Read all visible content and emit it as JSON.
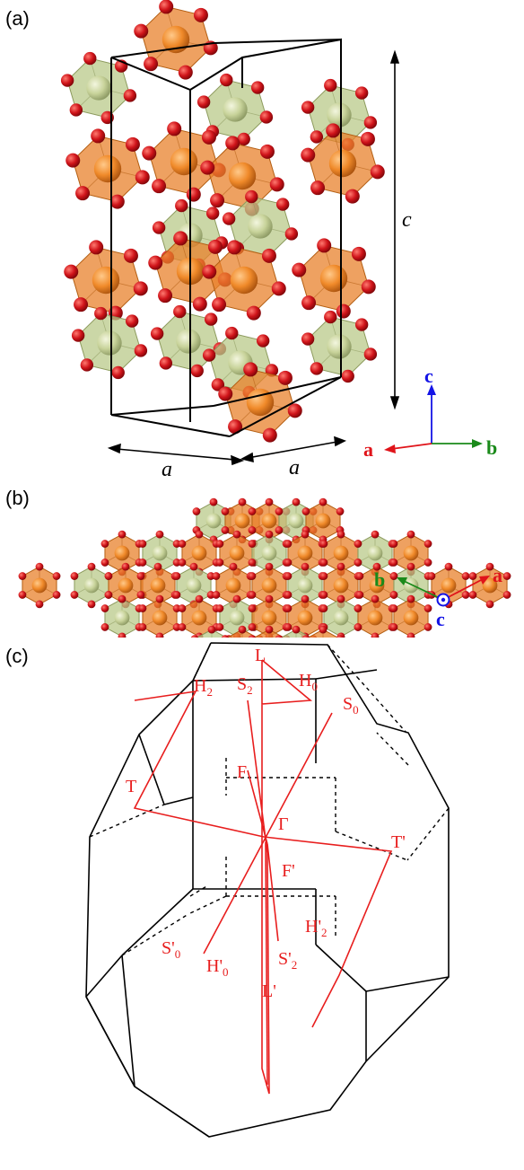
{
  "panels": {
    "a": {
      "label": "(a)",
      "lattice_c": "c",
      "lattice_a_left": "a",
      "lattice_a_right": "a",
      "axes": {
        "c": "c",
        "a": "a",
        "b": "b"
      }
    },
    "b": {
      "label": "(b)",
      "axes": {
        "b": "b",
        "a": "a",
        "c": "c"
      }
    },
    "c": {
      "label": "(c)",
      "points": {
        "L": "L",
        "S2": "S",
        "S2_sub": "2",
        "H2": "H",
        "H2_sub": "2",
        "H0": "H",
        "H0_sub": "0",
        "S0": "S",
        "S0_sub": "0",
        "F": "F",
        "T": "T",
        "Gamma": "Γ",
        "Tp": "T'",
        "Fp": "F'",
        "H2p": "H'",
        "H2p_sub": "2",
        "S0p": "S'",
        "S0p_sub": "0",
        "H0p": "H'",
        "H0p_sub": "0",
        "S2p": "S'",
        "S2p_sub": "2",
        "Lp": "L'"
      }
    }
  },
  "colors": {
    "oxygen": "#d0141a",
    "orange_cation": "#f08a2a",
    "green_cation": "#c8d39a",
    "orange_poly": "#e8822c",
    "green_poly": "#b9c98a",
    "axis_a": "#e0141a",
    "axis_b": "#1a8a1a",
    "axis_c": "#1414e6",
    "path": "#e81e1e"
  }
}
